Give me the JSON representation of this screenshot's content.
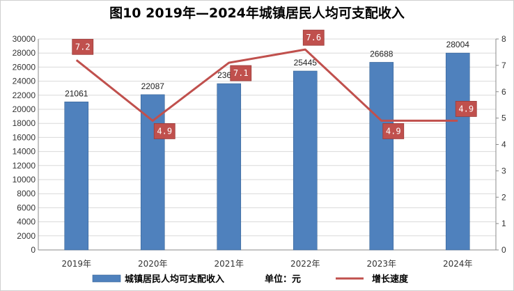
{
  "chart_data": {
    "type": "bar",
    "title": "图10  2019年—2024年城镇居民人均可支配收入",
    "categories": [
      "2019年",
      "2020年",
      "2021年",
      "2022年",
      "2023年",
      "2024年"
    ],
    "series": [
      {
        "name": "城镇居民人均可支配收入",
        "type": "bar",
        "axis": "left",
        "values": [
          21061,
          22087,
          23651,
          25445,
          26688,
          28004
        ],
        "color": "#4f81bd"
      },
      {
        "name": "增长速度",
        "type": "line",
        "axis": "right",
        "values": [
          7.2,
          4.9,
          7.1,
          7.6,
          4.9,
          4.9
        ],
        "labels": [
          "7.2",
          "4.9",
          "7.1",
          "7.6",
          "4.9",
          "4.9"
        ],
        "color": "#c0504d"
      }
    ],
    "ylim_left": [
      0,
      30000
    ],
    "yticks_left": [
      0,
      2000,
      4000,
      6000,
      8000,
      10000,
      12000,
      14000,
      16000,
      18000,
      20000,
      22000,
      24000,
      26000,
      28000,
      30000
    ],
    "ylim_right": [
      0,
      8
    ],
    "yticks_right": [
      0,
      1,
      2,
      3,
      4,
      5,
      6,
      7,
      8
    ],
    "grid": true,
    "legend_position": "bottom",
    "legend": {
      "bar_label": "城镇居民人均可支配收入",
      "unit_label": "单位：元",
      "line_label": "增长速度"
    }
  }
}
